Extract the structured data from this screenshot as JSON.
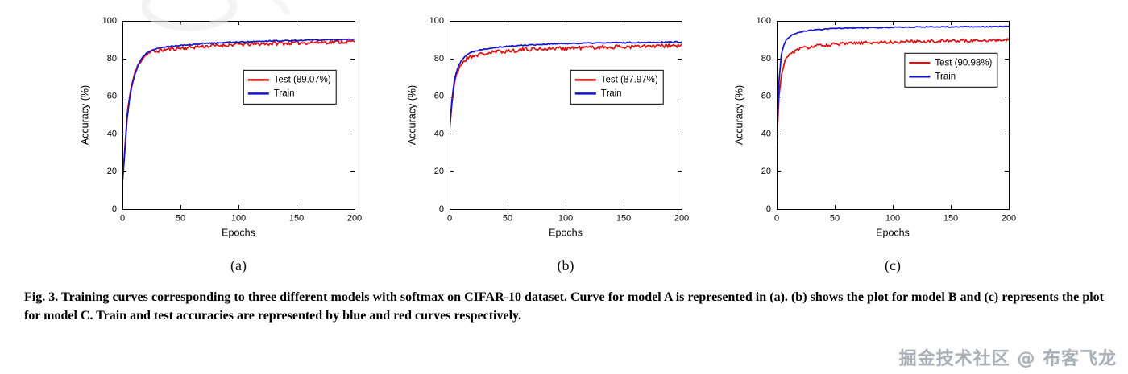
{
  "caption": {
    "text": "Fig. 3. Training curves corresponding to three different models with softmax on CIFAR-10 dataset. Curve for model A is represented in (a). (b) shows the plot for model B and (c) represents the plot for model C. Train and test accuracies are represented by blue and red curves respectively."
  },
  "watermark": {
    "text": "掘金技术社区 @ 布客飞龙"
  },
  "colors": {
    "test": "#dd1111",
    "train": "#1414cc",
    "axis": "#000000"
  },
  "chart_data": [
    {
      "type": "line",
      "sublabel": "(a)",
      "xlabel": "Epochs",
      "ylabel": "Accuracy (%)",
      "xlim": [
        0,
        200
      ],
      "ylim": [
        0,
        100
      ],
      "xticks": [
        0,
        50,
        100,
        150,
        200
      ],
      "yticks": [
        0,
        20,
        40,
        60,
        80,
        100
      ],
      "grid": false,
      "legend": {
        "x": 0.52,
        "y": 0.26
      },
      "series": [
        {
          "name": "Test (89.07%)",
          "color": "#dd1111",
          "noise": 1.0,
          "seed": 11,
          "anchors": {
            "epochs": [
              0,
              2,
              4,
              6,
              8,
              10,
              13,
              16,
              20,
              25,
              30,
              40,
              50,
              70,
              100,
              130,
              160,
              200
            ],
            "values": [
              14,
              32,
              50,
              60,
              66,
              71,
              76,
              79,
              82,
              83.5,
              84,
              85,
              85.5,
              86.5,
              87.5,
              88,
              88.5,
              89
            ]
          }
        },
        {
          "name": "Train",
          "color": "#1414cc",
          "noise": 0.3,
          "seed": 12,
          "anchors": {
            "epochs": [
              0,
              2,
              4,
              6,
              8,
              10,
              13,
              16,
              20,
              25,
              30,
              40,
              50,
              70,
              100,
              130,
              160,
              200
            ],
            "values": [
              14,
              30,
              48,
              58,
              65,
              70,
              75.5,
              79.5,
              82.5,
              84.5,
              85.5,
              86.5,
              87,
              88,
              88.8,
              89.4,
              89.8,
              90.2
            ]
          }
        }
      ]
    },
    {
      "type": "line",
      "sublabel": "(b)",
      "xlabel": "Epochs",
      "ylabel": "Accuracy (%)",
      "xlim": [
        0,
        200
      ],
      "ylim": [
        0,
        100
      ],
      "xticks": [
        0,
        50,
        100,
        150,
        200
      ],
      "yticks": [
        0,
        20,
        40,
        60,
        80,
        100
      ],
      "grid": false,
      "legend": {
        "x": 0.52,
        "y": 0.26
      },
      "series": [
        {
          "name": "Test (87.97%)",
          "color": "#dd1111",
          "noise": 1.1,
          "seed": 21,
          "anchors": {
            "epochs": [
              0,
              2,
              4,
              6,
              8,
              10,
              13,
              16,
              20,
              25,
              30,
              40,
              50,
              70,
              100,
              130,
              160,
              200
            ],
            "values": [
              42,
              56,
              66,
              71,
              74.5,
              77,
              79,
              80.5,
              81.5,
              82,
              82.5,
              83.5,
              84,
              85,
              85.5,
              86,
              86.3,
              86.8
            ]
          }
        },
        {
          "name": "Train",
          "color": "#1414cc",
          "noise": 0.3,
          "seed": 22,
          "anchors": {
            "epochs": [
              0,
              2,
              4,
              6,
              8,
              10,
              13,
              16,
              20,
              25,
              30,
              40,
              50,
              70,
              100,
              130,
              160,
              200
            ],
            "values": [
              42,
              58,
              68,
              73,
              76.5,
              79,
              81,
              82.5,
              83.5,
              84.5,
              85,
              86,
              86.5,
              87.3,
              88,
              88.3,
              88.5,
              88.8
            ]
          }
        }
      ]
    },
    {
      "type": "line",
      "sublabel": "(c)",
      "xlabel": "Epochs",
      "ylabel": "Accuracy (%)",
      "xlim": [
        0,
        200
      ],
      "ylim": [
        0,
        100
      ],
      "xticks": [
        0,
        50,
        100,
        150,
        200
      ],
      "yticks": [
        0,
        20,
        40,
        60,
        80,
        100
      ],
      "grid": false,
      "legend": {
        "x": 0.55,
        "y": 0.17
      },
      "series": [
        {
          "name": "Test (90.98%)",
          "color": "#dd1111",
          "noise": 0.9,
          "seed": 31,
          "anchors": {
            "epochs": [
              0,
              2,
              4,
              6,
              8,
              10,
              13,
              16,
              20,
              25,
              30,
              40,
              50,
              70,
              100,
              130,
              160,
              200
            ],
            "values": [
              33,
              60,
              71,
              76.5,
              79.5,
              81.5,
              83,
              84,
              85,
              85.8,
              86.3,
              87,
              87.5,
              88.2,
              88.8,
              89.2,
              89.5,
              90
            ]
          }
        },
        {
          "name": "Train",
          "color": "#1414cc",
          "noise": 0.25,
          "seed": 32,
          "anchors": {
            "epochs": [
              0,
              2,
              4,
              6,
              8,
              10,
              13,
              16,
              20,
              25,
              30,
              40,
              50,
              70,
              100,
              130,
              160,
              200
            ],
            "values": [
              33,
              68,
              82,
              87,
              89.5,
              91,
              92.5,
              93.3,
              94,
              94.6,
              95,
              95.6,
              96,
              96.3,
              96.6,
              96.8,
              96.9,
              97
            ]
          }
        }
      ]
    }
  ]
}
